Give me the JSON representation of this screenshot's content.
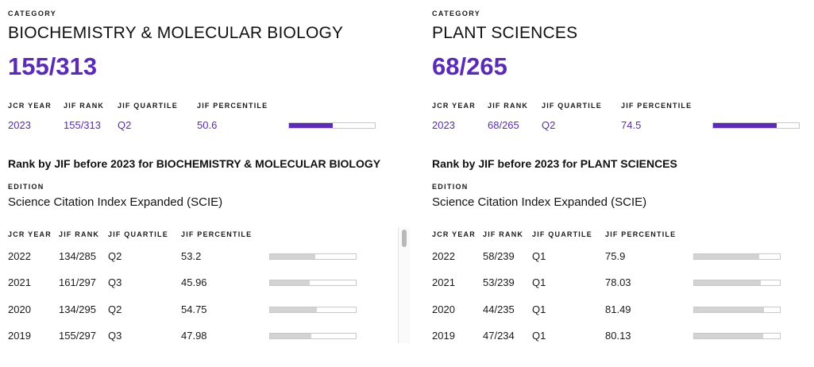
{
  "left": {
    "category_label": "CATEGORY",
    "category_name": "BIOCHEMISTRY & MOLECULAR BIOLOGY",
    "category_rank": "155/313",
    "headers": {
      "year": "JCR YEAR",
      "rank": "JIF RANK",
      "quartile": "JIF QUARTILE",
      "percentile": "JIF PERCENTILE"
    },
    "current": {
      "year": "2023",
      "rank": "155/313",
      "quartile": "Q2",
      "percentile": "50.6",
      "percentile_value": 50.6
    },
    "history_title": "Rank by JIF before 2023 for BIOCHEMISTRY & MOLECULAR BIOLOGY",
    "edition_label": "EDITION",
    "edition_name": "Science Citation Index Expanded (SCIE)",
    "history": [
      {
        "year": "2022",
        "rank": "134/285",
        "quartile": "Q2",
        "percentile": "53.2",
        "percentile_value": 53.2
      },
      {
        "year": "2021",
        "rank": "161/297",
        "quartile": "Q3",
        "percentile": "45.96",
        "percentile_value": 45.96
      },
      {
        "year": "2020",
        "rank": "134/295",
        "quartile": "Q2",
        "percentile": "54.75",
        "percentile_value": 54.75
      },
      {
        "year": "2019",
        "rank": "155/297",
        "quartile": "Q3",
        "percentile": "47.98",
        "percentile_value": 47.98
      }
    ]
  },
  "right": {
    "category_label": "CATEGORY",
    "category_name": "PLANT SCIENCES",
    "category_rank": "68/265",
    "headers": {
      "year": "JCR YEAR",
      "rank": "JIF RANK",
      "quartile": "JIF QUARTILE",
      "percentile": "JIF PERCENTILE"
    },
    "current": {
      "year": "2023",
      "rank": "68/265",
      "quartile": "Q2",
      "percentile": "74.5",
      "percentile_value": 74.5
    },
    "history_title": "Rank by JIF before 2023 for PLANT SCIENCES",
    "edition_label": "EDITION",
    "edition_name": "Science Citation Index Expanded (SCIE)",
    "history": [
      {
        "year": "2022",
        "rank": "58/239",
        "quartile": "Q1",
        "percentile": "75.9",
        "percentile_value": 75.9
      },
      {
        "year": "2021",
        "rank": "53/239",
        "quartile": "Q1",
        "percentile": "78.03",
        "percentile_value": 78.03
      },
      {
        "year": "2020",
        "rank": "44/235",
        "quartile": "Q1",
        "percentile": "81.49",
        "percentile_value": 81.49
      },
      {
        "year": "2019",
        "rank": "47/234",
        "quartile": "Q1",
        "percentile": "80.13",
        "percentile_value": 80.13
      }
    ]
  },
  "colors": {
    "accent": "#5b2bb5",
    "history_bar": "#d3d3d3",
    "bar_border": "#c9c9c9"
  }
}
